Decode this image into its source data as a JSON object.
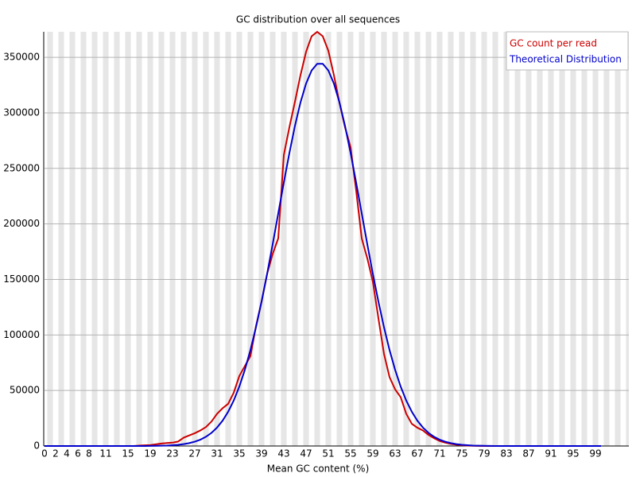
{
  "chart_data": {
    "type": "line",
    "title": "GC distribution over all sequences",
    "xlabel": "Mean GC content (%)",
    "x": [
      0,
      1,
      2,
      3,
      4,
      5,
      6,
      7,
      8,
      9,
      10,
      11,
      12,
      13,
      14,
      15,
      16,
      17,
      18,
      19,
      20,
      21,
      22,
      23,
      24,
      25,
      26,
      27,
      28,
      29,
      30,
      31,
      32,
      33,
      34,
      35,
      36,
      37,
      38,
      39,
      40,
      41,
      42,
      43,
      44,
      45,
      46,
      47,
      48,
      49,
      50,
      51,
      52,
      53,
      54,
      55,
      56,
      57,
      58,
      59,
      60,
      61,
      62,
      63,
      64,
      65,
      66,
      67,
      68,
      69,
      70,
      71,
      72,
      73,
      74,
      75,
      76,
      77,
      78,
      79,
      80,
      81,
      82,
      83,
      84,
      85,
      86,
      87,
      88,
      89,
      90,
      91,
      92,
      93,
      94,
      95,
      96,
      97,
      98,
      99,
      100
    ],
    "series": [
      {
        "name": "GC count per read",
        "color": "#cc0000",
        "values": [
          0,
          0,
          0,
          0,
          0,
          0,
          0,
          0,
          0,
          0,
          0,
          0,
          0,
          0,
          0,
          0,
          0,
          400,
          600,
          800,
          1500,
          2200,
          2700,
          3000,
          4000,
          7500,
          9500,
          11500,
          14000,
          17000,
          22000,
          29000,
          34000,
          38000,
          48000,
          63000,
          72000,
          81000,
          108000,
          130000,
          155000,
          173000,
          187000,
          262000,
          287000,
          310000,
          334000,
          355000,
          369000,
          373000,
          369000,
          356000,
          334000,
          309000,
          287000,
          269000,
          230000,
          187000,
          169000,
          148000,
          115000,
          83000,
          62000,
          51000,
          44000,
          29000,
          20000,
          16500,
          14000,
          10000,
          7000,
          4500,
          3000,
          2000,
          1200,
          700,
          400,
          200,
          100,
          0,
          0,
          0,
          0,
          0,
          0,
          0,
          0,
          0,
          0,
          0,
          0,
          0,
          0,
          0,
          0,
          0,
          0,
          0,
          0,
          0,
          0
        ]
      },
      {
        "name": "Theoretical Distribution",
        "color": "#0000cc",
        "values": [
          0,
          0,
          0,
          0,
          0,
          0,
          0,
          0,
          0,
          0,
          0,
          0,
          0,
          0,
          0,
          0,
          0,
          0,
          0,
          100,
          200,
          300,
          400,
          700,
          1100,
          1700,
          2600,
          3900,
          5700,
          8300,
          11800,
          16600,
          22800,
          30900,
          40900,
          53500,
          68600,
          86400,
          107000,
          130000,
          155000,
          181700,
          209500,
          237200,
          263800,
          288300,
          309500,
          326400,
          338200,
          344200,
          344200,
          338200,
          326400,
          309500,
          288300,
          263800,
          237200,
          209500,
          181700,
          155000,
          130000,
          107000,
          86400,
          68600,
          53500,
          40900,
          30900,
          22800,
          16600,
          11800,
          8300,
          5700,
          3900,
          2600,
          1700,
          1100,
          700,
          400,
          300,
          200,
          100,
          0,
          0,
          0,
          0,
          0,
          0,
          0,
          0,
          0,
          0,
          0,
          0,
          0,
          0,
          0,
          0,
          0,
          0,
          0,
          0
        ]
      }
    ],
    "xlim": [
      0,
      105
    ],
    "xticks": [
      0,
      2,
      4,
      6,
      8,
      11,
      15,
      19,
      23,
      27,
      31,
      35,
      39,
      43,
      47,
      51,
      55,
      59,
      63,
      67,
      71,
      75,
      79,
      83,
      87,
      91,
      95,
      99
    ],
    "ylim": [
      0,
      373000
    ],
    "yticks": [
      0,
      50000,
      100000,
      150000,
      200000,
      250000,
      300000,
      350000
    ],
    "grid": true,
    "legend": "top-right"
  }
}
